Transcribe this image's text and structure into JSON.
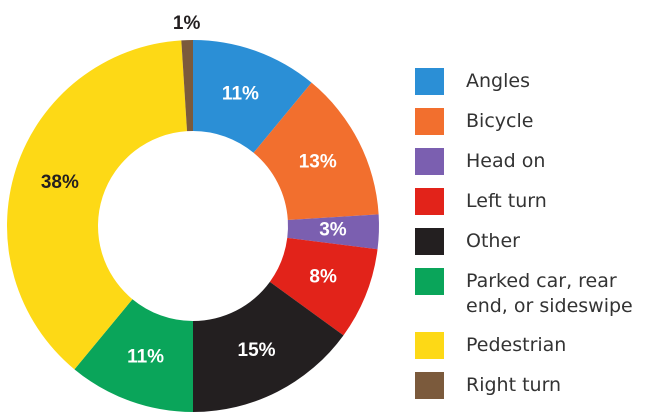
{
  "chart_data": {
    "type": "donut",
    "categories": [
      "Angles",
      "Bicycle",
      "Head on",
      "Left turn",
      "Other",
      "Parked car, rear end, or sideswipe",
      "Pedestrian",
      "Right turn"
    ],
    "values": [
      11,
      13,
      3,
      8,
      15,
      11,
      38,
      1
    ],
    "value_labels": [
      "11%",
      "13%",
      "3%",
      "8%",
      "15%",
      "11%",
      "38%",
      "1%"
    ],
    "colors": [
      "#2b8fd6",
      "#f26f2e",
      "#7b5fb0",
      "#e2231a",
      "#231f20",
      "#0aa55a",
      "#fdd916",
      "#7b5a3c"
    ],
    "legend": "right"
  }
}
